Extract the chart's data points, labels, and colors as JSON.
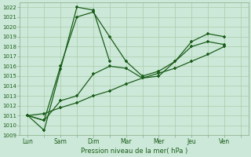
{
  "xlabel": "Pression niveau de la mer( hPa )",
  "background_color": "#cce8d8",
  "grid_color": "#aaccaa",
  "line_color": "#1a5e1a",
  "ylim": [
    1009,
    1022.5
  ],
  "yticks": [
    1009,
    1010,
    1011,
    1012,
    1013,
    1014,
    1015,
    1016,
    1017,
    1018,
    1019,
    1020,
    1021,
    1022
  ],
  "x_labels": [
    "Lun",
    "Sam",
    "Dim",
    "Mar",
    "Mer",
    "Jeu",
    "Ven"
  ],
  "x_positions": [
    0,
    2,
    4,
    6,
    8,
    10,
    12
  ],
  "xlim": [
    -0.5,
    13.5
  ],
  "series1_x": [
    0,
    1,
    2,
    3,
    4,
    5
  ],
  "series1_y": [
    1011.0,
    1009.5,
    1015.7,
    1022.0,
    1021.7,
    1016.5
  ],
  "series2_x": [
    0,
    1,
    2,
    3,
    4,
    5,
    6,
    7,
    8,
    9,
    10,
    11,
    12
  ],
  "series2_y": [
    1011.0,
    1010.5,
    1016.0,
    1021.0,
    1021.5,
    1019.0,
    1016.5,
    1015.0,
    1015.5,
    1016.5,
    1018.5,
    1019.3,
    1019.0
  ],
  "series3_x": [
    0,
    1,
    2,
    3,
    4,
    5,
    6,
    7,
    8,
    9,
    10,
    11,
    12
  ],
  "series3_y": [
    1011.0,
    1010.5,
    1012.5,
    1013.0,
    1015.2,
    1016.0,
    1015.8,
    1014.8,
    1015.0,
    1016.5,
    1018.0,
    1018.5,
    1018.2
  ],
  "series4_x": [
    0,
    1,
    2,
    3,
    4,
    5,
    6,
    7,
    8,
    9,
    10,
    11,
    12
  ],
  "series4_y": [
    1011.0,
    1011.2,
    1011.8,
    1012.3,
    1013.0,
    1013.5,
    1014.2,
    1014.8,
    1015.3,
    1015.8,
    1016.5,
    1017.2,
    1018.0
  ]
}
